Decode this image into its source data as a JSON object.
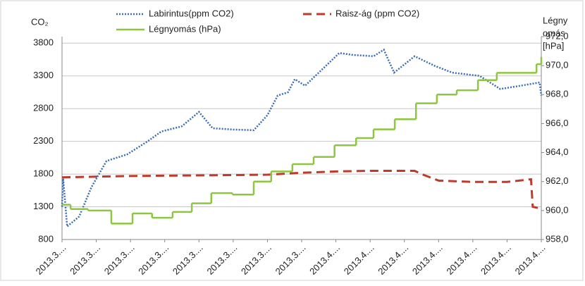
{
  "chart_data": {
    "type": "line",
    "ylabel": "CO₂",
    "y2label": [
      "Légny",
      "omás",
      "[hPa]"
    ],
    "xlim": [
      0,
      14
    ],
    "xticks": [
      {
        "value": 0,
        "label": "2013.3...."
      },
      {
        "value": 1,
        "label": "2013.3...."
      },
      {
        "value": 2,
        "label": "2013.3...."
      },
      {
        "value": 3,
        "label": "2013.3...."
      },
      {
        "value": 4,
        "label": "2013.3...."
      },
      {
        "value": 5,
        "label": "2013.3...."
      },
      {
        "value": 6,
        "label": "2013.3...."
      },
      {
        "value": 7,
        "label": "2013.3...."
      },
      {
        "value": 8,
        "label": "2013.4...."
      },
      {
        "value": 9,
        "label": "2013.4...."
      },
      {
        "value": 10,
        "label": "2013.4...."
      },
      {
        "value": 11,
        "label": "2013.4...."
      },
      {
        "value": 12,
        "label": "2013.4...."
      },
      {
        "value": 13,
        "label": "2013.4...."
      },
      {
        "value": 14,
        "label": "2013.4...."
      }
    ],
    "ylim": [
      800,
      3900
    ],
    "yticks": [
      800,
      1300,
      1800,
      2300,
      2800,
      3300,
      3800
    ],
    "y2lim": [
      958,
      972
    ],
    "y2ticks": [
      {
        "value": 958,
        "label": "958,0"
      },
      {
        "value": 960,
        "label": "960,0"
      },
      {
        "value": 962,
        "label": "962,0"
      },
      {
        "value": 964,
        "label": "964,0"
      },
      {
        "value": 966,
        "label": "966,0"
      },
      {
        "value": 968,
        "label": "968,0"
      },
      {
        "value": 970,
        "label": "970,0"
      },
      {
        "value": 972,
        "label": "972,0"
      }
    ],
    "grid": true,
    "legend": "top",
    "series": [
      {
        "name": "Labirintus(ppm CO2)",
        "color": "#3a6db5",
        "style": "dotted",
        "x": [
          0,
          0.03,
          0.15,
          0.5,
          0.86,
          1.3,
          1.9,
          2.5,
          2.9,
          3.5,
          4.0,
          4.4,
          5.0,
          5.6,
          6.0,
          6.3,
          6.6,
          6.8,
          7.1,
          7.7,
          8.1,
          8.5,
          9.1,
          9.4,
          9.7,
          10.3,
          10.9,
          11.4,
          12.2,
          12.8,
          13.4,
          13.95,
          14
        ],
        "values": [
          1300,
          1750,
          1000,
          1150,
          1600,
          2000,
          2100,
          2300,
          2450,
          2530,
          2750,
          2500,
          2480,
          2470,
          2700,
          3000,
          3050,
          3250,
          3150,
          3450,
          3650,
          3620,
          3600,
          3700,
          3350,
          3600,
          3450,
          3350,
          3300,
          3100,
          3150,
          3200,
          3000
        ]
      },
      {
        "name": "Raisz-ág (ppm CO2)",
        "color": "#c0392b",
        "style": "dashed",
        "x": [
          0,
          2,
          4,
          6,
          7,
          8,
          9,
          10.3,
          10.5,
          11,
          12,
          13,
          13.7,
          13.75,
          14
        ],
        "values": [
          1750,
          1770,
          1780,
          1790,
          1820,
          1840,
          1850,
          1850,
          1800,
          1700,
          1680,
          1680,
          1720,
          1300,
          1270
        ]
      },
      {
        "name": "Légnyomás (hPa)",
        "color": "#8dc63f",
        "style": "steps",
        "axis": "y2",
        "x": [
          0,
          0.25,
          0.76,
          1.44,
          2.06,
          2.63,
          3.23,
          3.79,
          4.36,
          4.98,
          5.6,
          6.11,
          6.73,
          7.35,
          7.96,
          8.59,
          9.1,
          9.72,
          10.34,
          10.95,
          11.53,
          12.15,
          12.7,
          13.86,
          14
        ],
        "values": [
          960.4,
          960.1,
          960.0,
          959.1,
          959.8,
          959.5,
          959.9,
          960.5,
          961.2,
          961.1,
          962.0,
          962.7,
          963.2,
          963.7,
          964.5,
          965.0,
          965.6,
          966.3,
          967.4,
          968.0,
          968.3,
          969.0,
          969.5,
          970.1,
          970.6
        ]
      }
    ]
  }
}
